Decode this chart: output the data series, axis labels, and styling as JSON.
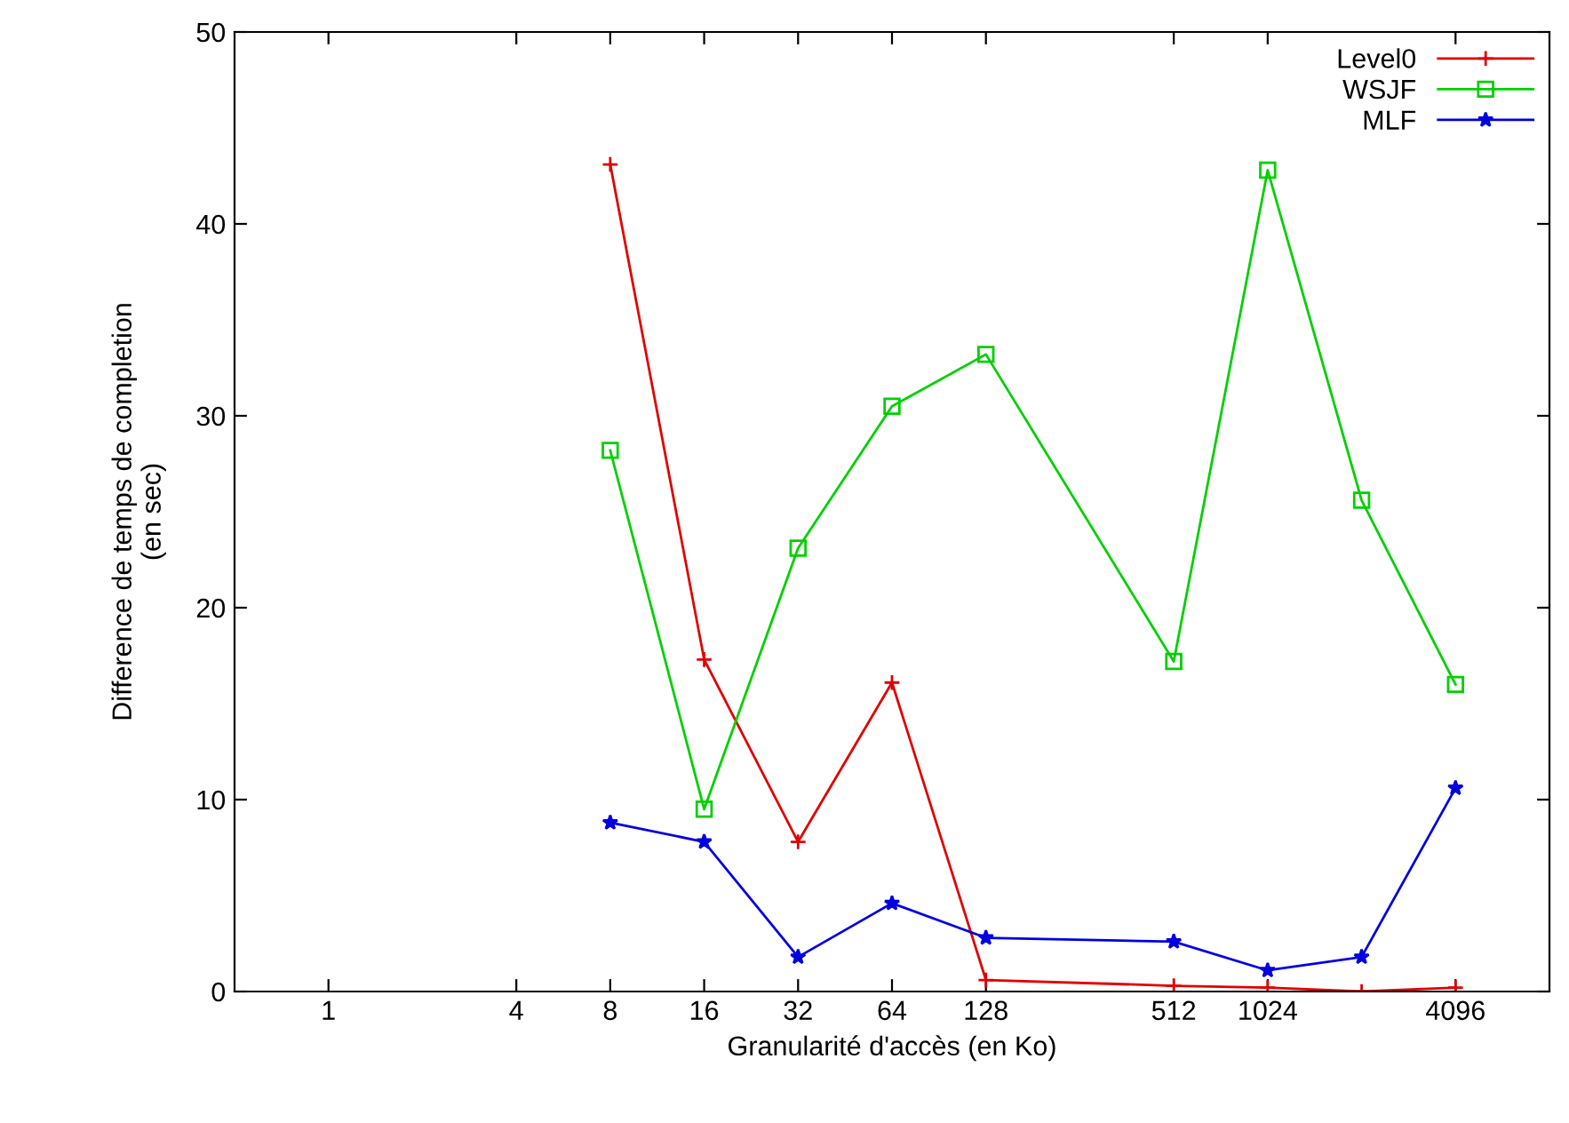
{
  "chart_data": {
    "type": "line",
    "xlabel": "Granularité d'accès (en Ko)",
    "ylabel": "Difference de temps de completion\n(en sec)",
    "log": "x",
    "xlim": [
      0.5,
      8192
    ],
    "xticks": [
      1,
      4,
      8,
      16,
      32,
      64,
      128,
      512,
      1024,
      4096
    ],
    "ylim": [
      0,
      50
    ],
    "yticks": [
      0,
      10,
      20,
      30,
      40,
      50
    ],
    "grid": false,
    "legend": "top right",
    "x": [
      8,
      16,
      32,
      64,
      128,
      512,
      1024,
      2048,
      4096
    ],
    "series": [
      {
        "name": "Level0",
        "color": "#e00000",
        "marker": "cross",
        "values": [
          43.1,
          17.3,
          7.8,
          16.1,
          0.6,
          0.3,
          0.2,
          0.0,
          0.2
        ]
      },
      {
        "name": "WSJF",
        "color": "#00d000",
        "marker": "square",
        "values": [
          28.2,
          9.5,
          23.1,
          30.5,
          33.2,
          17.2,
          42.8,
          25.6,
          16.0
        ]
      },
      {
        "name": "MLF",
        "color": "#0000e0",
        "marker": "star",
        "values": [
          8.8,
          7.8,
          1.8,
          4.6,
          2.8,
          2.6,
          1.1,
          1.8,
          10.6
        ]
      }
    ]
  }
}
